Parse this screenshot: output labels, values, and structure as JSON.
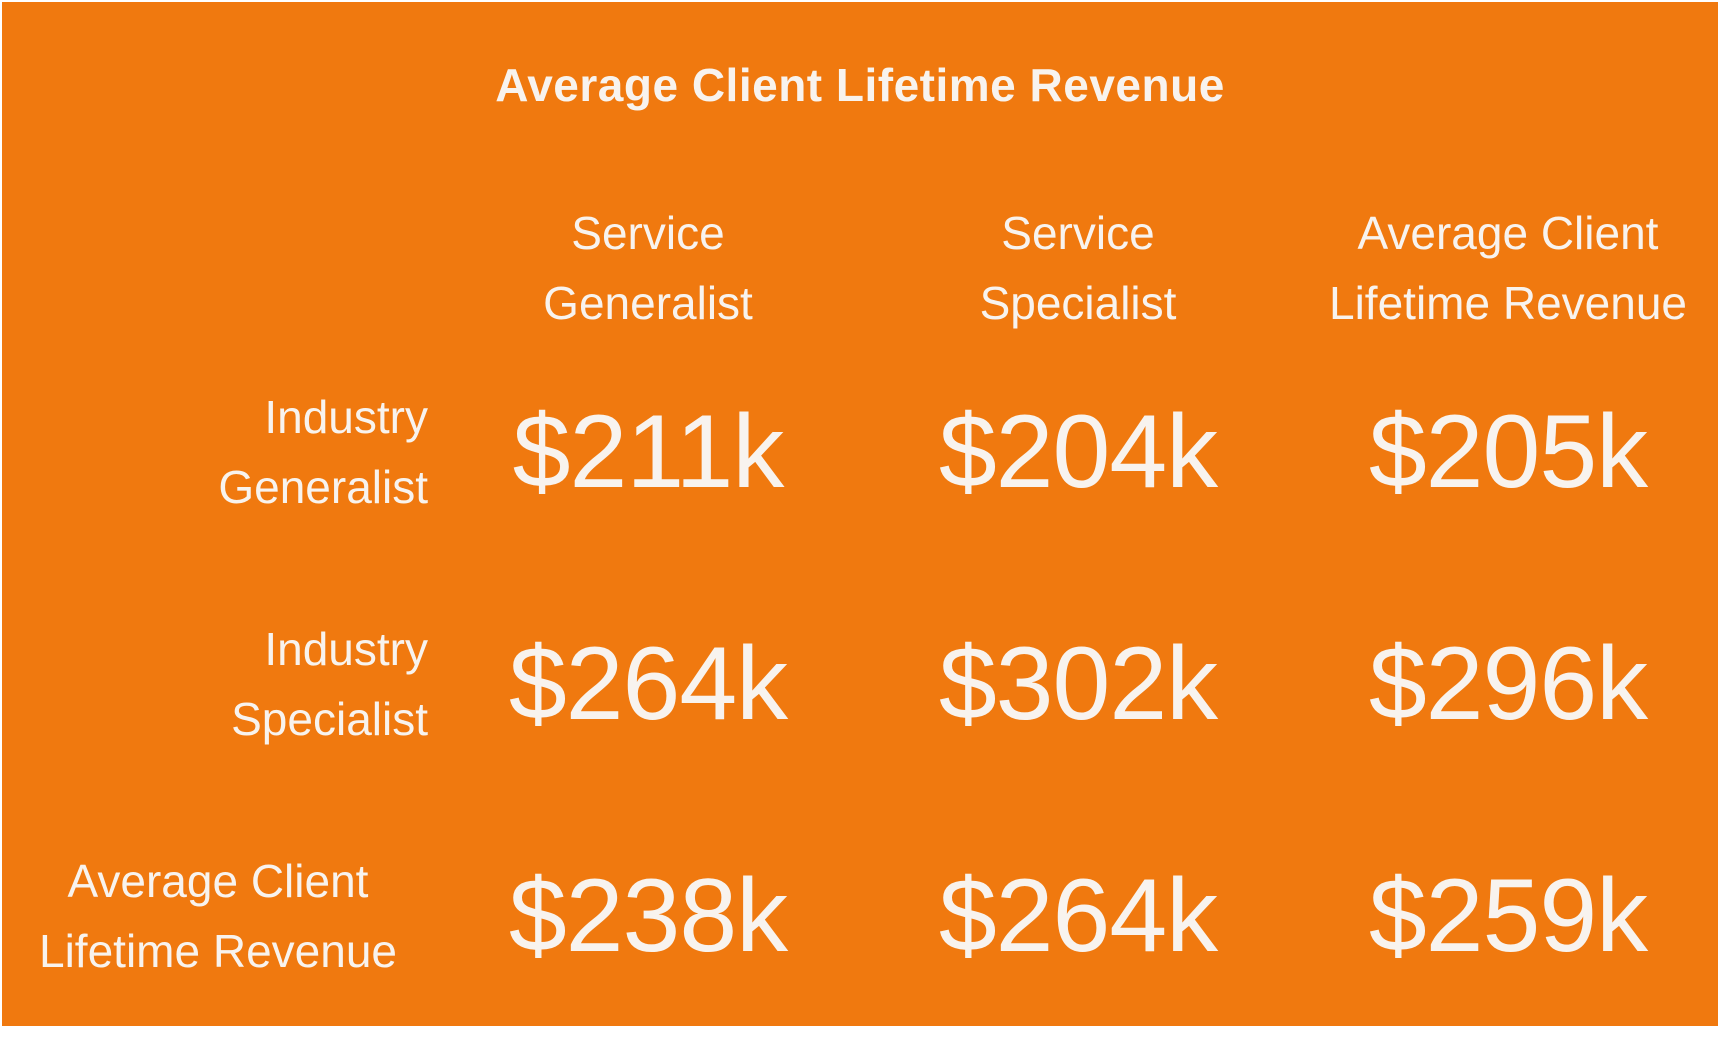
{
  "chart_data": {
    "type": "table",
    "title": "Average Client Lifetime Revenue",
    "columns": [
      [
        "Service",
        "Generalist"
      ],
      [
        "Service",
        "Specialist"
      ],
      [
        "Average Client",
        "Lifetime Revenue"
      ]
    ],
    "rows": [
      {
        "label": [
          "Industry",
          "Generalist"
        ],
        "values": [
          "$211k",
          "$204k",
          "$205k"
        ]
      },
      {
        "label": [
          "Industry",
          "Specialist"
        ],
        "values": [
          "$264k",
          "$302k",
          "$296k"
        ]
      },
      {
        "label": [
          "Average Client",
          "Lifetime Revenue"
        ],
        "values": [
          "$238k",
          "$264k",
          "$259k"
        ]
      }
    ]
  },
  "colors": {
    "background": "#f0790f",
    "text": "#f8f3ee"
  }
}
